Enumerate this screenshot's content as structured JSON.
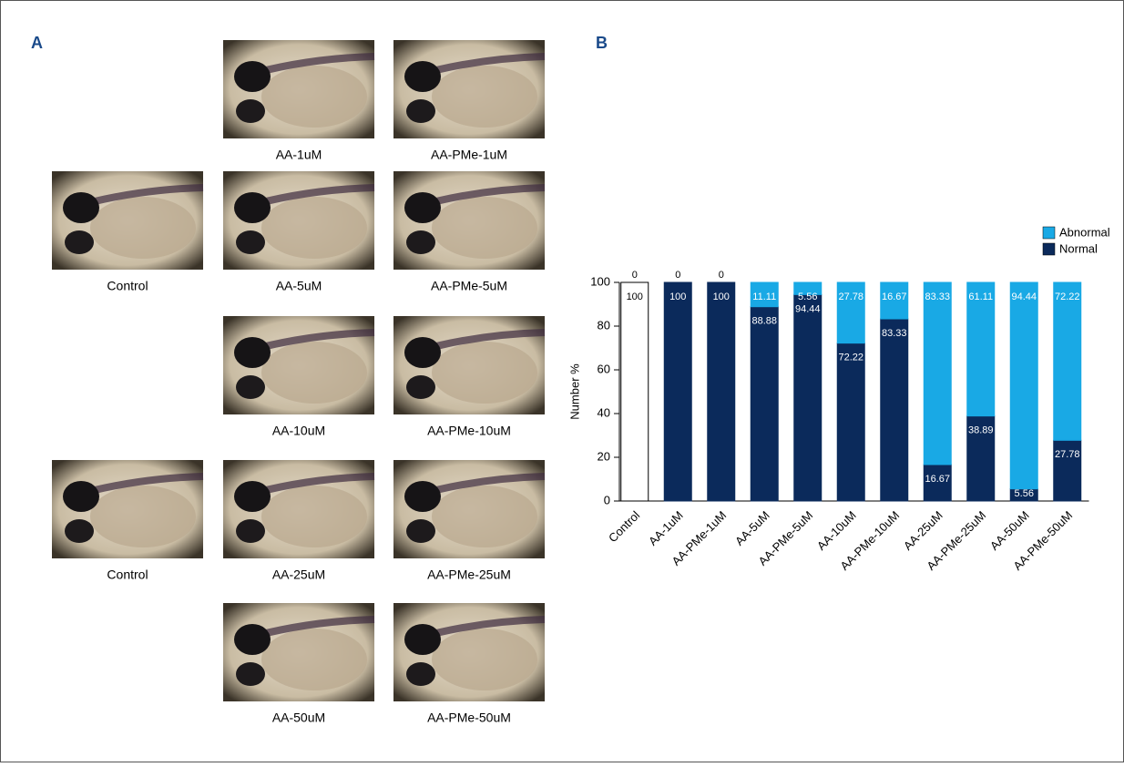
{
  "panel_labels": [
    "A",
    "B"
  ],
  "images": [
    {
      "caption": "AA-1uM"
    },
    {
      "caption": "AA-PMe-1uM"
    },
    {
      "caption": "Control"
    },
    {
      "caption": "AA-5uM"
    },
    {
      "caption": "AA-PMe-5uM"
    },
    {
      "caption": "AA-10uM"
    },
    {
      "caption": "AA-PMe-10uM"
    },
    {
      "caption": "Control"
    },
    {
      "caption": "AA-25uM"
    },
    {
      "caption": "AA-PMe-25uM"
    },
    {
      "caption": "AA-50uM"
    },
    {
      "caption": "AA-PMe-50uM"
    }
  ],
  "chart_data": {
    "type": "stacked_bar",
    "categories": [
      "Control",
      "AA-1uM",
      "AA-PMe-1uM",
      "AA-5uM",
      "AA-PMe-5uM",
      "AA-10uM",
      "AA-PMe-10uM",
      "AA-25uM",
      "AA-PMe-25uM",
      "AA-50uM",
      "AA-PMe-50uM"
    ],
    "series": [
      {
        "name": "Normal",
        "color": "#0b2a5b",
        "colors": [
          "#ffffff",
          "#0b2a5b",
          "#0b2a5b",
          "#0b2a5b",
          "#0b2a5b",
          "#0b2a5b",
          "#0b2a5b",
          "#0b2a5b",
          "#0b2a5b",
          "#0b2a5b",
          "#0b2a5b"
        ],
        "values": [
          100,
          100,
          100,
          88.88,
          94.44,
          72.22,
          83.33,
          16.67,
          38.89,
          5.56,
          27.78
        ]
      },
      {
        "name": "Abnormal",
        "color": "#19a9e5",
        "values": [
          0,
          0,
          0,
          11.11,
          5.56,
          27.78,
          16.67,
          83.33,
          61.11,
          94.44,
          72.22
        ]
      }
    ],
    "y_label": "Number %",
    "ylim": [
      0,
      100
    ],
    "yticks": [
      0,
      20,
      40,
      60,
      80,
      100
    ],
    "legend": "top-right"
  }
}
